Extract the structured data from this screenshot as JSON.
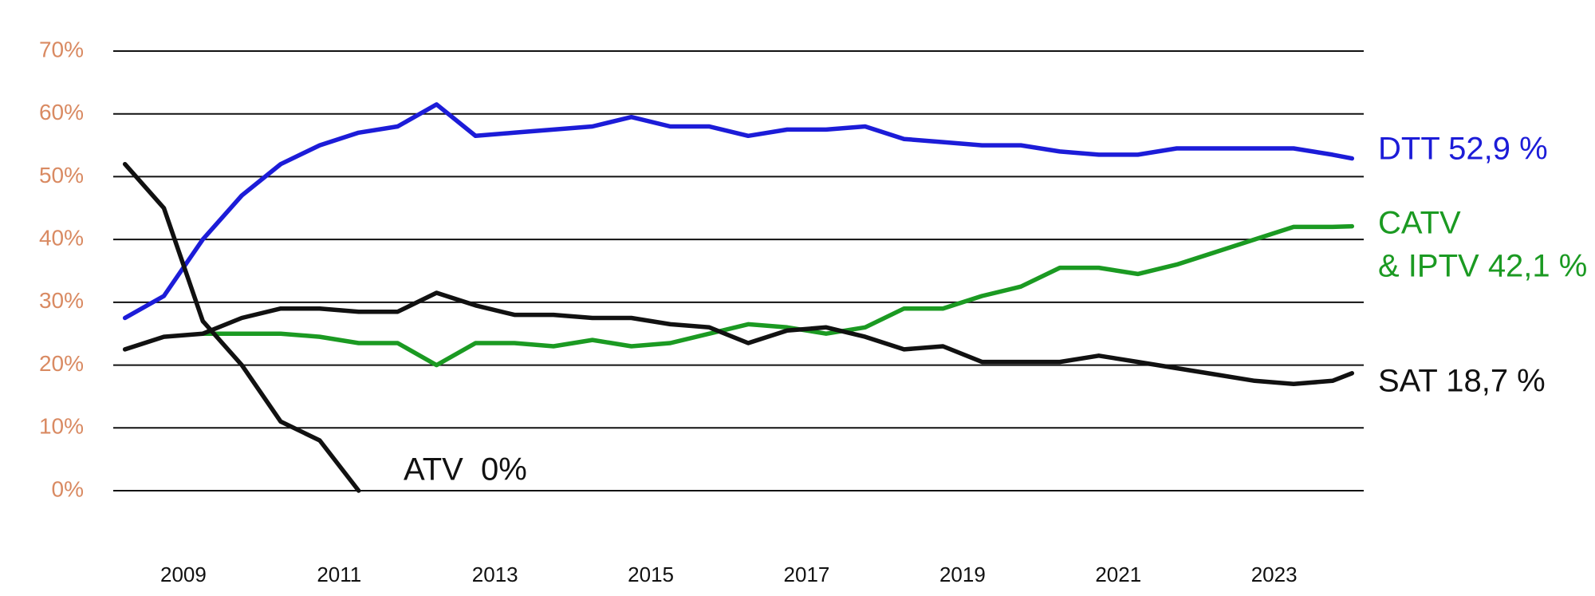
{
  "chart_data": {
    "type": "line",
    "x": [
      2008.25,
      2008.75,
      2009.25,
      2009.75,
      2010.25,
      2010.75,
      2011.25,
      2011.75,
      2012.25,
      2012.75,
      2013.25,
      2013.75,
      2014.25,
      2014.75,
      2015.25,
      2015.75,
      2016.25,
      2016.75,
      2017.25,
      2017.75,
      2018.25,
      2018.75,
      2019.25,
      2019.75,
      2020.25,
      2020.75,
      2021.25,
      2021.75,
      2022.25,
      2022.75,
      2023.25,
      2023.75,
      2024.0
    ],
    "series": [
      {
        "label_lines": [
          "DTT 52,9 %"
        ],
        "color": "#1c1cd8",
        "values": [
          27.5,
          31,
          40,
          47,
          52,
          55,
          57,
          58,
          61.5,
          56.5,
          57,
          57.5,
          58,
          59.5,
          58,
          58,
          56.5,
          57.5,
          57.5,
          58,
          56,
          55.5,
          55,
          55,
          54,
          53.5,
          53.5,
          54.5,
          54.5,
          54.5,
          54.5,
          53.5,
          52.9
        ]
      },
      {
        "label_lines": [
          "CATV",
          "& IPTV 42,1 %"
        ],
        "color": "#1b9a22",
        "values": [
          null,
          null,
          25,
          25,
          25,
          24.5,
          23.5,
          23.5,
          20,
          23.5,
          23.5,
          23,
          24,
          23,
          23.5,
          25,
          26.5,
          26,
          25,
          26,
          29,
          29,
          31,
          32.5,
          35.5,
          35.5,
          34.5,
          36,
          38,
          40,
          42,
          42,
          42.1
        ]
      },
      {
        "label_lines": [
          "SAT 18,7 %"
        ],
        "color": "#111111",
        "values": [
          22.5,
          24.5,
          25,
          27.5,
          29,
          29,
          28.5,
          28.5,
          31.5,
          29.5,
          28,
          28,
          27.5,
          27.5,
          26.5,
          26,
          23.5,
          25.5,
          26,
          24.5,
          22.5,
          23,
          20.5,
          20.5,
          20.5,
          21.5,
          20.5,
          19.5,
          18.5,
          17.5,
          17,
          17.5,
          18.7
        ]
      },
      {
        "label_lines": [
          "ATV  0%"
        ],
        "color": "#111111",
        "values": [
          52,
          45,
          27,
          20,
          11,
          8,
          0,
          null,
          null,
          null,
          null,
          null,
          null,
          null,
          null,
          null,
          null,
          null,
          null,
          null,
          null,
          null,
          null,
          null,
          null,
          null,
          null,
          null,
          null,
          null,
          null,
          null,
          null
        ]
      }
    ],
    "xlim": [
      2008.1,
      2024.15
    ],
    "xticks": [
      2009,
      2011,
      2013,
      2015,
      2017,
      2019,
      2021,
      2023
    ],
    "ylim": [
      0,
      70
    ],
    "yticks": [
      {
        "value": 0,
        "label": "0%"
      },
      {
        "value": 10,
        "label": "10%"
      },
      {
        "value": 20,
        "label": "20%"
      },
      {
        "value": 30,
        "label": "30%"
      },
      {
        "value": 40,
        "label": "40%"
      },
      {
        "value": 50,
        "label": "50%"
      },
      {
        "value": 60,
        "label": "60%"
      },
      {
        "value": 70,
        "label": "70%"
      }
    ],
    "grid": true
  }
}
